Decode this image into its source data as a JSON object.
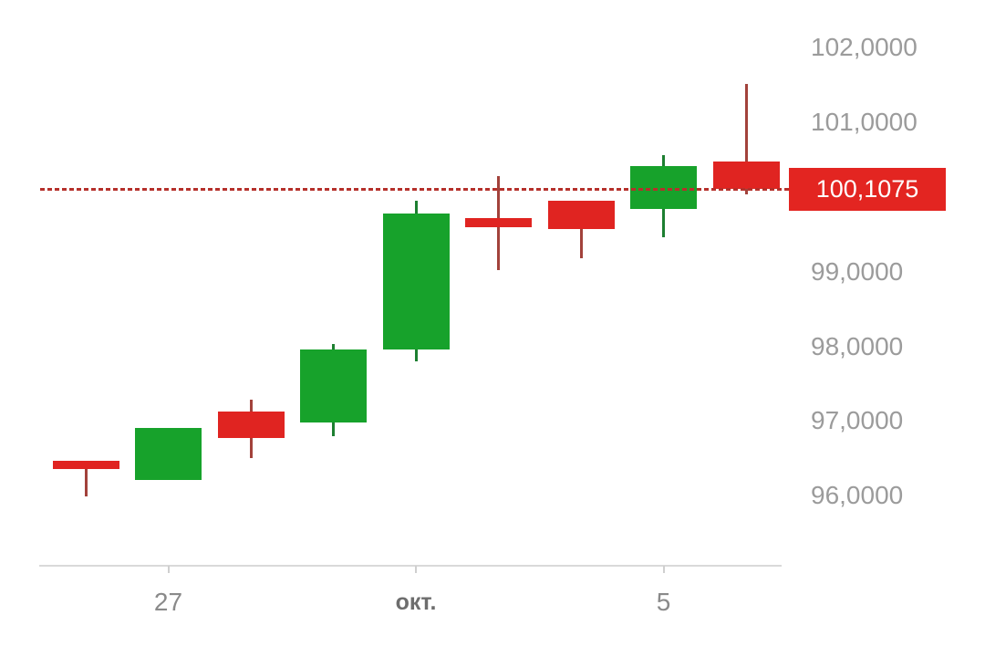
{
  "chart_data": {
    "type": "candlestick",
    "title": "",
    "xlabel": "",
    "ylabel": "",
    "grid": false,
    "legend": false,
    "ylim": [
      95.06,
      102.64
    ],
    "candles": [
      {
        "open": 96.47,
        "high": 96.47,
        "low": 95.99,
        "close": 96.35
      },
      {
        "open": 96.21,
        "high": 96.9,
        "low": 96.21,
        "close": 96.9
      },
      {
        "open": 97.13,
        "high": 97.28,
        "low": 96.5,
        "close": 96.77
      },
      {
        "open": 96.98,
        "high": 98.03,
        "low": 96.8,
        "close": 97.96
      },
      {
        "open": 97.96,
        "high": 99.95,
        "low": 97.8,
        "close": 99.78
      },
      {
        "open": 99.72,
        "high": 100.28,
        "low": 99.02,
        "close": 99.6
      },
      {
        "open": 99.95,
        "high": 99.95,
        "low": 99.18,
        "close": 99.57
      },
      {
        "open": 99.84,
        "high": 100.56,
        "low": 99.46,
        "close": 100.42
      },
      {
        "open": 100.47,
        "high": 101.51,
        "low": 100.03,
        "close": 100.1075
      }
    ],
    "x_ticks": [
      {
        "candle_index": 1,
        "label": "27",
        "bold": false
      },
      {
        "candle_index": 4,
        "label": "окт.",
        "bold": true
      },
      {
        "candle_index": 7,
        "label": "5",
        "bold": false
      }
    ],
    "y_ticks": [
      {
        "value": 102,
        "label": "102,0000"
      },
      {
        "value": 101,
        "label": "101,0000"
      },
      {
        "value": 99,
        "label": "99,0000"
      },
      {
        "value": 98,
        "label": "98,0000"
      },
      {
        "value": 97,
        "label": "97,0000"
      },
      {
        "value": 96,
        "label": "96,0000"
      }
    ],
    "current_price": {
      "value": 100.1075,
      "label": "100,1075"
    },
    "colors": {
      "up_body": "#17a22b",
      "up_wick": "#1d7f31",
      "down_body": "#e02421",
      "down_wick": "#a2423b",
      "price_line": "#b5302b",
      "badge_bg": "#e32521",
      "badge_text": "#ffffff",
      "y_label": "#9b9b9b",
      "x_label": "#8a8a8a",
      "month_label": "#6d6d6d",
      "axis_line": "#d9d9d9",
      "tick": "#cfcfcf"
    }
  }
}
